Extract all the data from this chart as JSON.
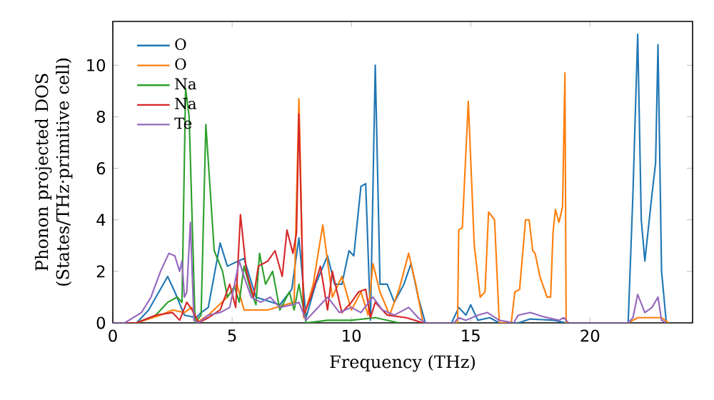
{
  "chart_data": {
    "type": "line",
    "xlabel": "Frequency (THz)",
    "ylabel": "Phonon projected DOS (States/THz·primitive cell)",
    "xlim": [
      0,
      24.3
    ],
    "ylim": [
      0,
      11.7
    ],
    "xticks": [
      0,
      5,
      10,
      15,
      20
    ],
    "yticks": [
      0,
      2,
      4,
      6,
      8,
      10
    ],
    "legend": "top left",
    "series": [
      {
        "name": "O",
        "color": "#1f77b4",
        "x": [
          0,
          1,
          1.5,
          2.3,
          2.6,
          3.0,
          3.5,
          3.7,
          4.0,
          4.5,
          4.8,
          5.5,
          6.0,
          7.0,
          7.5,
          7.8,
          8.1,
          8.5,
          9.0,
          9.3,
          9.6,
          9.9,
          10.1,
          10.4,
          10.6,
          10.8,
          11.0,
          11.2,
          11.5,
          11.8,
          12.2,
          12.5,
          12.8,
          13.1,
          14.2,
          14.5,
          14.8,
          15.0,
          15.3,
          15.8,
          16.2,
          17.0,
          17.5,
          18.5,
          19.0,
          21.6,
          21.8,
          22.0,
          22.15,
          22.3,
          22.6,
          22.75,
          22.85,
          23.0,
          23.2
        ],
        "values": [
          0,
          0,
          0.5,
          1.8,
          1.2,
          0.3,
          0.2,
          0.4,
          0.6,
          3.1,
          2.2,
          2.5,
          1,
          0.7,
          1.3,
          3.3,
          0.2,
          1.5,
          2.6,
          1.5,
          1.5,
          2.8,
          2.6,
          5.3,
          5.4,
          0.1,
          10,
          1.5,
          1.5,
          0.8,
          1.5,
          2.3,
          1.0,
          0,
          0,
          0.6,
          0.3,
          0.7,
          0.1,
          0.2,
          0,
          0,
          0.15,
          0.1,
          0,
          0,
          5,
          11.2,
          4,
          2.4,
          5,
          6.2,
          10.8,
          2,
          0
        ]
      },
      {
        "name": "O",
        "color": "#ff7f0e",
        "x": [
          0,
          1,
          2,
          2.5,
          3.0,
          3.3,
          3.5,
          4.0,
          4.8,
          5.2,
          5.5,
          6.5,
          7.2,
          7.6,
          7.8,
          8.0,
          8.4,
          8.8,
          9.2,
          9.6,
          10.0,
          10.4,
          10.7,
          10.9,
          11.2,
          11.6,
          12.0,
          12.4,
          12.7,
          13.0,
          14.45,
          14.5,
          14.65,
          14.9,
          15.15,
          15.4,
          15.6,
          15.75,
          16.0,
          16.2,
          16.7,
          16.85,
          17.05,
          17.3,
          17.45,
          17.6,
          17.7,
          17.9,
          18.2,
          18.35,
          18.45,
          18.55,
          18.7,
          18.85,
          18.95,
          19.0,
          21.6,
          22.0,
          23.0,
          23.3
        ],
        "values": [
          0,
          0,
          0.3,
          0.5,
          0.4,
          0.6,
          0,
          0.3,
          1,
          1.5,
          0.5,
          0.5,
          0.7,
          0.8,
          8.7,
          0.2,
          1.5,
          3.8,
          1,
          1.8,
          0.5,
          1.2,
          0.3,
          2.3,
          1.2,
          0.3,
          1.3,
          2.7,
          1.5,
          0,
          0,
          3.6,
          3.7,
          8.6,
          3,
          1,
          1.2,
          4.3,
          4,
          0,
          0,
          1.2,
          1.3,
          4,
          4,
          2.8,
          2.7,
          1.8,
          1,
          1,
          3.5,
          4.4,
          3.9,
          4.5,
          9.7,
          0,
          0,
          0.2,
          0.2,
          0
        ]
      },
      {
        "name": "Na",
        "color": "#2ca02c",
        "x": [
          0,
          1,
          1.8,
          2.3,
          2.7,
          2.9,
          3.05,
          3.2,
          3.45,
          3.7,
          3.9,
          4.25,
          4.6,
          4.8,
          5.1,
          5.3,
          5.5,
          5.8,
          6.0,
          6.15,
          6.4,
          6.7,
          7.0,
          7.4,
          7.6,
          7.8,
          8.1,
          9,
          10,
          11,
          12
        ],
        "values": [
          0,
          0,
          0.3,
          0.8,
          1,
          0.8,
          9.1,
          8,
          0,
          0.3,
          7.7,
          2.8,
          2,
          1,
          1.4,
          0.8,
          2.2,
          1.2,
          0.7,
          2.7,
          1.5,
          2,
          0.5,
          1.2,
          0.5,
          1.5,
          0,
          0.1,
          0.1,
          0.2,
          0
        ]
      },
      {
        "name": "Na",
        "color": "#d62728",
        "x": [
          0,
          1,
          1.8,
          2.5,
          2.8,
          3.1,
          3.4,
          3.6,
          4.0,
          4.5,
          4.9,
          5.15,
          5.35,
          5.6,
          5.9,
          6.1,
          6.5,
          6.8,
          7.1,
          7.3,
          7.55,
          7.7,
          7.8,
          8.0,
          8.3,
          8.7,
          9.0,
          9.2,
          9.6,
          10.0,
          10.3,
          10.6,
          10.8,
          11.0,
          11.5,
          12.3,
          13.0
        ],
        "values": [
          0,
          0,
          0.3,
          0.4,
          0.1,
          0.8,
          0.4,
          0,
          0.2,
          0.5,
          1.5,
          0.6,
          4.2,
          2,
          1,
          2.2,
          2.4,
          2.8,
          1.8,
          3.6,
          2.7,
          3.5,
          8.1,
          0.3,
          1,
          2.2,
          0.5,
          2,
          0.4,
          0.8,
          1.2,
          1.3,
          0.2,
          0.8,
          0.3,
          0.2,
          0
        ]
      },
      {
        "name": "Te",
        "color": "#9467bd",
        "x": [
          0,
          0.5,
          1.2,
          1.6,
          2.0,
          2.35,
          2.6,
          2.8,
          2.9,
          3.0,
          3.1,
          3.25,
          3.4,
          3.6,
          4.0,
          4.5,
          4.9,
          5.3,
          5.5,
          5.8,
          6.2,
          6.6,
          7.0,
          7.5,
          7.8,
          8.1,
          8.5,
          9.0,
          9.5,
          10.0,
          10.4,
          10.9,
          11.3,
          11.8,
          12.4,
          12.8,
          13.1,
          14.3,
          14.5,
          14.8,
          15.3,
          15.7,
          16.2,
          16.8,
          17.0,
          17.5,
          18.0,
          18.7,
          18.9,
          19.1,
          21.6,
          21.8,
          22.0,
          22.3,
          22.6,
          22.85,
          23.0,
          23.2
        ],
        "values": [
          0,
          0,
          0.4,
          1,
          2,
          2.7,
          2.6,
          2,
          2.4,
          1,
          1.2,
          3.9,
          0.1,
          0,
          0.3,
          0.4,
          0.6,
          2.4,
          1.8,
          1,
          0.8,
          1,
          0.6,
          0.7,
          0.8,
          0.1,
          0.5,
          1,
          0.4,
          0.6,
          0.4,
          1,
          0.5,
          0.3,
          0.6,
          0.2,
          0,
          0,
          0.2,
          0.1,
          0.3,
          0.4,
          0.1,
          0,
          0.3,
          0.4,
          0.25,
          0.1,
          0.2,
          0,
          0,
          0.2,
          1.1,
          0.4,
          0.6,
          1,
          0.1,
          0
        ]
      }
    ]
  }
}
